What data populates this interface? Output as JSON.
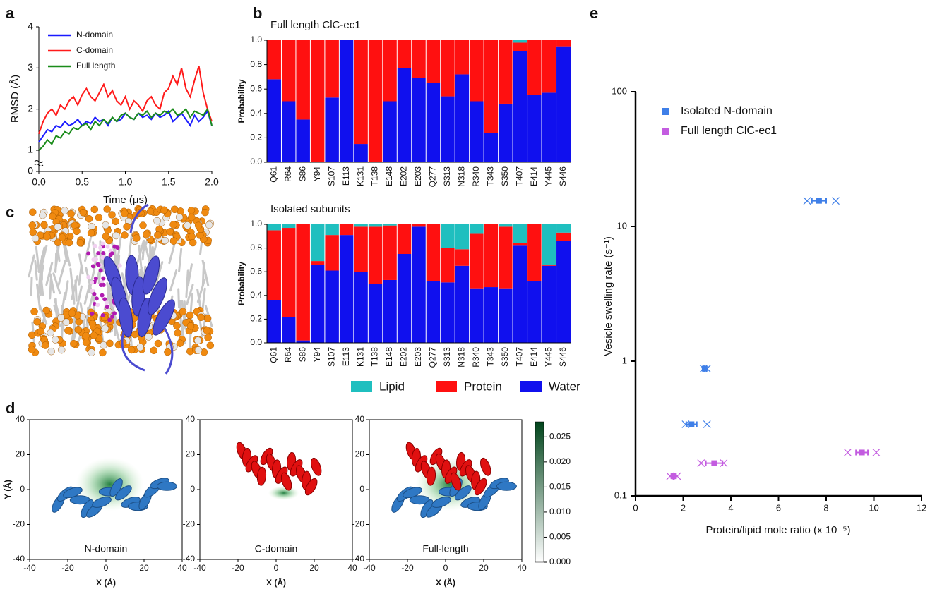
{
  "chart_data": [
    {
      "type": "line",
      "panel": "a",
      "ylabel": "RMSD (Å)",
      "xlabel": "Time (μs)",
      "x": [
        0,
        0.05,
        0.1,
        0.15,
        0.2,
        0.25,
        0.3,
        0.35,
        0.4,
        0.45,
        0.5,
        0.55,
        0.6,
        0.65,
        0.7,
        0.75,
        0.8,
        0.85,
        0.9,
        0.95,
        1,
        1.05,
        1.1,
        1.15,
        1.2,
        1.25,
        1.3,
        1.35,
        1.4,
        1.45,
        1.5,
        1.55,
        1.6,
        1.65,
        1.7,
        1.75,
        1.8,
        1.85,
        1.9,
        1.95,
        2
      ],
      "xlim": [
        0,
        2
      ],
      "xticks": [
        {
          "value": 0,
          "label": "0.0"
        },
        0.5,
        {
          "value": 1,
          "label": "1.0"
        },
        1.5,
        {
          "value": 2,
          "label": "2.0"
        }
      ],
      "ylim": [
        0,
        4
      ],
      "yticks": [
        0,
        1,
        2,
        3,
        4
      ],
      "axis_break": [
        0,
        1
      ],
      "legend": "upper left",
      "series": [
        {
          "name": "N-domain",
          "color": "#1a1aff",
          "values": [
            1.2,
            1.35,
            1.5,
            1.45,
            1.6,
            1.55,
            1.7,
            1.6,
            1.65,
            1.75,
            1.6,
            1.7,
            1.65,
            1.8,
            1.7,
            1.75,
            1.6,
            1.8,
            1.7,
            1.75,
            1.9,
            1.8,
            1.75,
            1.9,
            1.8,
            1.85,
            1.75,
            1.9,
            1.8,
            1.85,
            1.95,
            1.7,
            1.8,
            1.9,
            1.75,
            1.6,
            1.85,
            1.7,
            1.8,
            1.95,
            1.6
          ]
        },
        {
          "name": "C-domain",
          "color": "#ff1a1a",
          "values": [
            1.4,
            1.7,
            1.9,
            2.0,
            1.85,
            2.1,
            2.0,
            2.2,
            2.3,
            2.1,
            2.35,
            2.5,
            2.3,
            2.2,
            2.4,
            2.6,
            2.3,
            2.45,
            2.2,
            2.1,
            2.3,
            2.0,
            2.2,
            2.1,
            1.95,
            2.2,
            2.3,
            2.1,
            2.0,
            2.4,
            2.5,
            2.8,
            2.6,
            3.0,
            2.5,
            2.3,
            2.7,
            3.05,
            2.4,
            2.0,
            1.7
          ]
        },
        {
          "name": "Full length",
          "color": "#1a8c1a",
          "values": [
            1.0,
            1.1,
            1.25,
            1.15,
            1.35,
            1.3,
            1.45,
            1.4,
            1.55,
            1.5,
            1.6,
            1.65,
            1.5,
            1.7,
            1.6,
            1.75,
            1.65,
            1.8,
            1.7,
            1.85,
            1.9,
            1.8,
            1.75,
            1.9,
            1.85,
            1.95,
            1.8,
            1.9,
            1.85,
            1.95,
            1.9,
            2.0,
            1.85,
            1.9,
            2.0,
            1.8,
            1.95,
            1.9,
            1.85,
            2.0,
            1.6
          ]
        }
      ]
    },
    {
      "type": "stacked_bar",
      "panel": "b",
      "ylabel": "Probability",
      "categories": [
        "Q61",
        "R64",
        "S86",
        "Y94",
        "S107",
        "E113",
        "K131",
        "T138",
        "E148",
        "E202",
        "E203",
        "Q277",
        "S313",
        "N318",
        "R340",
        "T343",
        "S350",
        "T407",
        "E414",
        "Y445",
        "S446"
      ],
      "ylim": [
        0,
        1
      ],
      "yticks": [
        {
          "value": 0,
          "label": "0.0"
        },
        0.2,
        0.4,
        0.6,
        0.8,
        {
          "value": 1,
          "label": "1.0"
        }
      ],
      "legend": [
        {
          "name": "Lipid",
          "color": "#1fbfbf"
        },
        {
          "name": "Protein",
          "color": "#ff1010"
        },
        {
          "name": "Water",
          "color": "#1010ee"
        }
      ],
      "panels": [
        {
          "title": "Full length ClC-ec1",
          "series": [
            {
              "values": [
                0,
                0,
                0,
                0,
                0,
                0,
                0,
                0,
                0,
                0,
                0,
                0,
                0,
                0,
                0,
                0,
                0,
                0.02,
                0,
                0,
                0
              ]
            },
            {
              "values": [
                0.32,
                0.5,
                0.65,
                1.0,
                0.47,
                0,
                0.85,
                1.0,
                0.5,
                0.23,
                0.31,
                0.35,
                0.46,
                0.28,
                0.5,
                0.76,
                0.52,
                0.07,
                0.45,
                0.43,
                0.05
              ]
            },
            {
              "values": [
                0.68,
                0.5,
                0.35,
                0,
                0.53,
                1.0,
                0.15,
                0,
                0.5,
                0.77,
                0.69,
                0.65,
                0.54,
                0.72,
                0.5,
                0.24,
                0.48,
                0.91,
                0.55,
                0.57,
                0.95
              ]
            }
          ]
        },
        {
          "title": "Isolated subunits",
          "series": [
            {
              "values": [
                0.05,
                0.03,
                0,
                0.31,
                0.09,
                0,
                0.02,
                0.02,
                0.01,
                0,
                0,
                0,
                0.2,
                0.21,
                0.08,
                0,
                0.02,
                0.16,
                0,
                0.34,
                0.07
              ]
            },
            {
              "values": [
                0.59,
                0.75,
                0.98,
                0.03,
                0.3,
                0.09,
                0.38,
                0.48,
                0.46,
                0.25,
                0.02,
                0.48,
                0.29,
                0.14,
                0.46,
                0.53,
                0.52,
                0.02,
                0.48,
                0.01,
                0.07
              ]
            },
            {
              "values": [
                0.36,
                0.22,
                0.02,
                0.66,
                0.61,
                0.91,
                0.6,
                0.5,
                0.53,
                0.75,
                0.98,
                0.52,
                0.51,
                0.65,
                0.46,
                0.47,
                0.46,
                0.82,
                0.52,
                0.65,
                0.86
              ]
            }
          ]
        }
      ]
    },
    {
      "type": "image",
      "panel": "c"
    },
    {
      "type": "density_map",
      "panel": "d",
      "xlabel": "X (Å)",
      "ylabel": "Y (Å)",
      "xlim": [
        -40,
        40
      ],
      "ylim": [
        -40,
        40
      ],
      "xticks": [
        -40,
        -20,
        0,
        20,
        40
      ],
      "yticks": [
        -40,
        -20,
        0,
        20,
        40
      ],
      "panels": [
        "N-domain",
        "C-domain",
        "Full-length"
      ],
      "colorbar": {
        "lim": [
          0,
          0.028
        ],
        "colors": [
          "#ffffff",
          "#00441b"
        ],
        "ticks": [
          {
            "value": 0,
            "label": "0.000"
          },
          0.005,
          {
            "value": 0.01,
            "label": "0.010"
          },
          0.015,
          {
            "value": 0.02,
            "label": "0.020"
          },
          0.025
        ]
      }
    },
    {
      "type": "scatter",
      "panel": "e",
      "ylabel": "Vesicle swelling rate (s⁻¹)",
      "xlabel": "Protein/lipid mole ratio (x 10⁻⁵)",
      "log_y": true,
      "xlim": [
        0,
        12
      ],
      "xticks": [
        0,
        2,
        4,
        6,
        8,
        10,
        12
      ],
      "ylim": [
        0.1,
        100
      ],
      "yticks": [
        0.1,
        1,
        10,
        100
      ],
      "legend": "upper left",
      "series": [
        {
          "name": "Isolated N-domain",
          "color": "#3f7fe8",
          "x": [
            7.7,
            2.9,
            2.35
          ],
          "values": [
            15.5,
            0.88,
            0.34
          ],
          "xerr": [
            0.3,
            0.08,
            0.22
          ],
          "replicates_x": [
            7.2,
            8.4,
            2.85,
            3.0,
            2.1,
            3.0
          ],
          "replicates_y": [
            15.5,
            15.5,
            0.88,
            0.88,
            0.34,
            0.34
          ]
        },
        {
          "name": "Full length ClC-ec1",
          "color": "#c35ce0",
          "x": [
            9.5,
            3.3,
            1.6
          ],
          "values": [
            0.21,
            0.175,
            0.14
          ],
          "xerr": [
            0.25,
            0.35,
            0.1
          ],
          "replicates_x": [
            8.9,
            10.1,
            2.75,
            3.7,
            1.45,
            1.75
          ],
          "replicates_y": [
            0.21,
            0.21,
            0.175,
            0.175,
            0.14,
            0.14
          ]
        }
      ]
    }
  ]
}
